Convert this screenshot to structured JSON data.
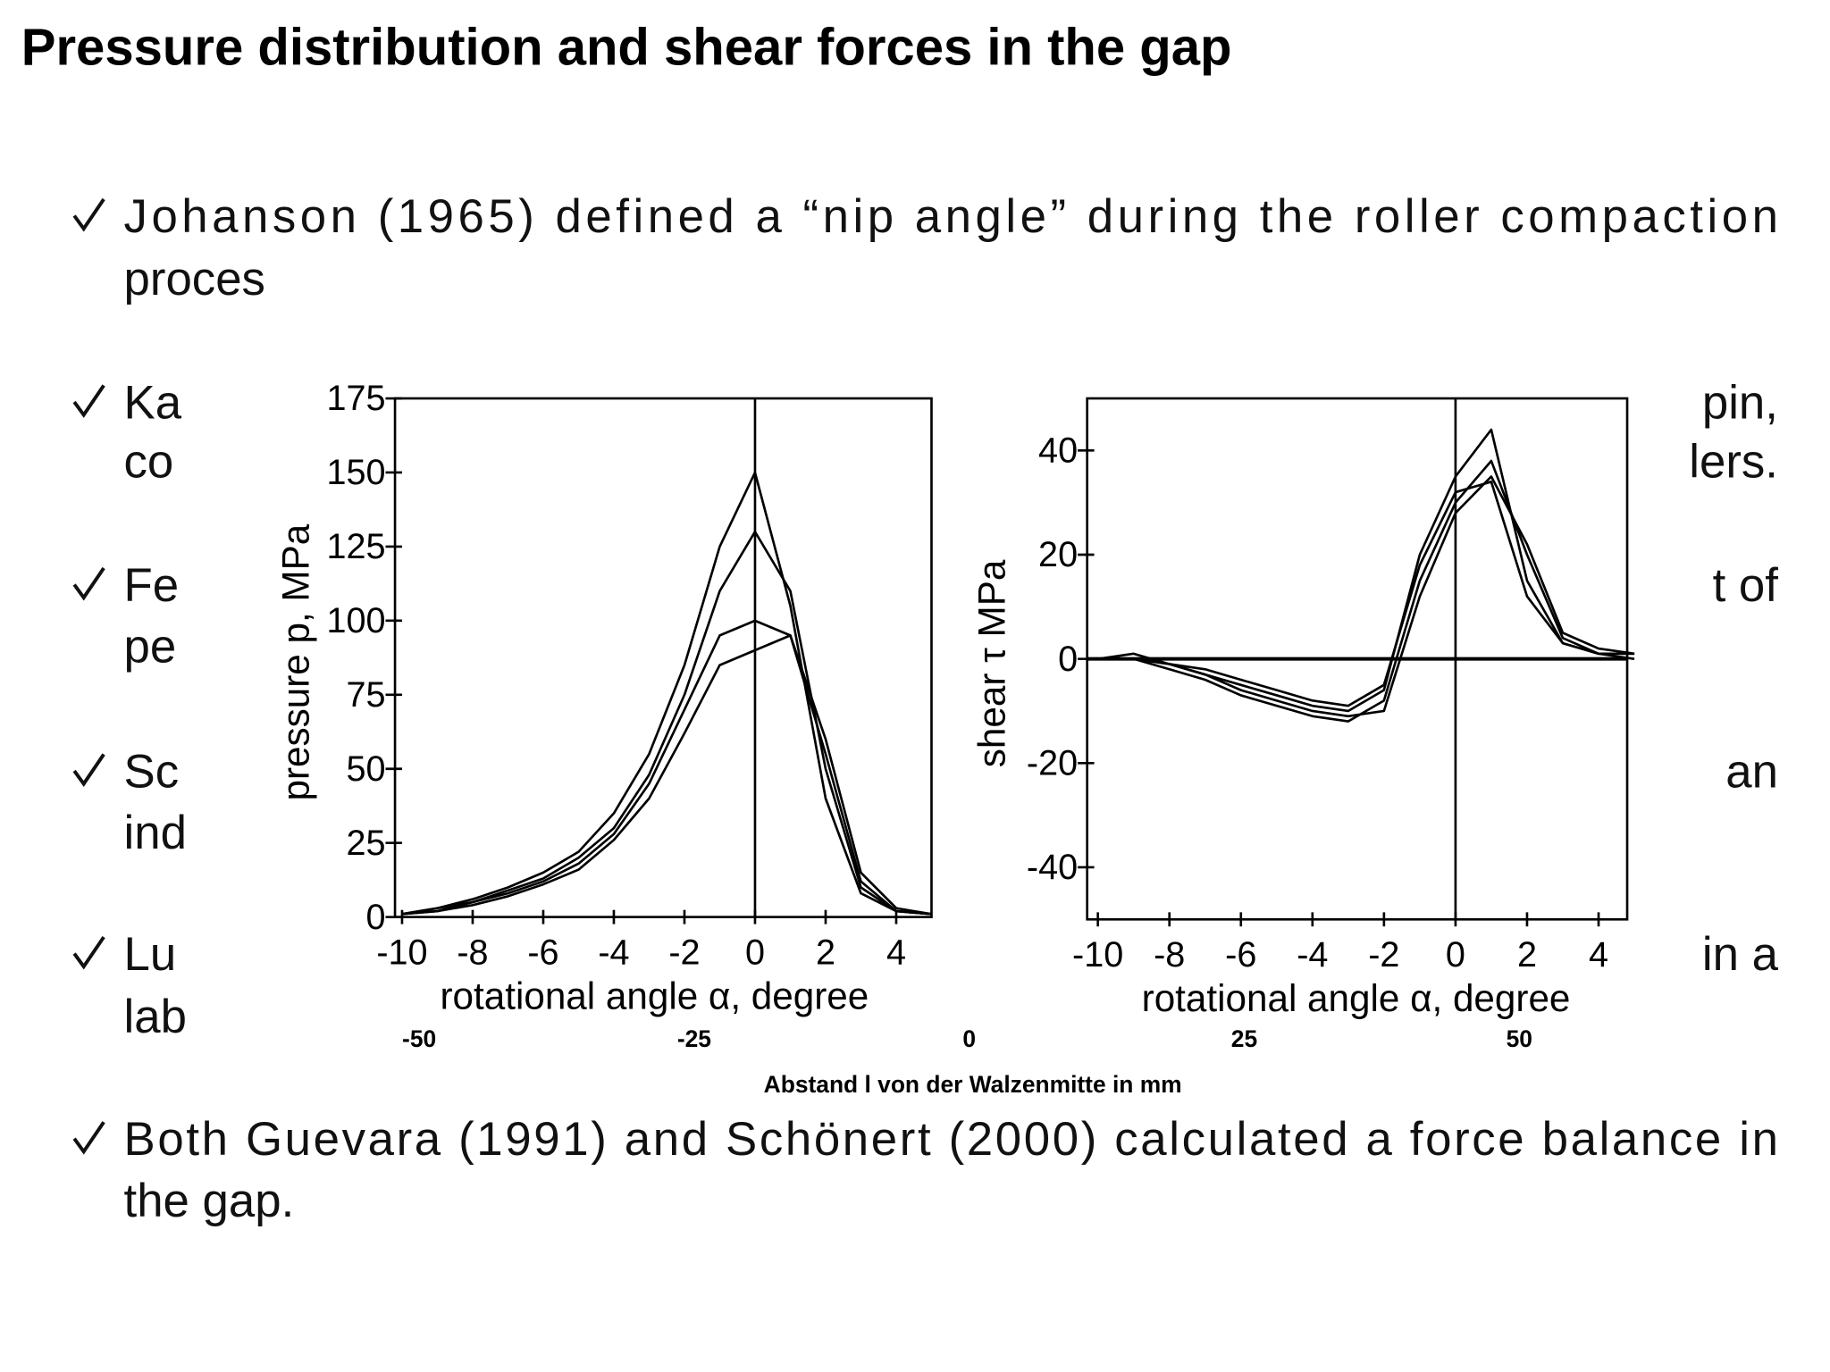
{
  "header": {
    "title": "Pressure distribution and shear forces in the gap"
  },
  "bullets": [
    {
      "lines": [
        "Johanson (1965) defined a “nip angle” during the roller compaction",
        "proces"
      ],
      "right": []
    },
    {
      "lines": [
        "Ka",
        "co"
      ],
      "right": [
        "pin,",
        "lers."
      ]
    },
    {
      "lines": [
        "Fe",
        "pe"
      ],
      "right": [
        "t of"
      ]
    },
    {
      "lines": [
        "Sc",
        "ind"
      ],
      "right": [
        "an"
      ]
    },
    {
      "lines": [
        "Lu",
        "lab"
      ],
      "right": [
        "in a"
      ]
    },
    {
      "lines": [
        "Both Guevara (1991) and Schönert (2000) calculated a force balance in",
        "the gap."
      ],
      "right": []
    }
  ],
  "chart_data": [
    {
      "type": "line",
      "xlabel": "rotational  angle  α,  degree",
      "ylabel": "pressure  p,  MPa",
      "x": [
        -10,
        -9,
        -8,
        -7,
        -6,
        -5,
        -4,
        -3,
        -2,
        -1,
        0,
        1,
        2,
        3,
        4,
        5
      ],
      "series": [
        {
          "color": "#000000",
          "values": [
            1,
            3,
            6,
            10,
            15,
            22,
            35,
            55,
            85,
            125,
            150,
            105,
            40,
            8,
            2,
            1
          ]
        },
        {
          "color": "#000000",
          "values": [
            1,
            3,
            5,
            9,
            13,
            20,
            30,
            48,
            75,
            110,
            130,
            110,
            50,
            10,
            2,
            1
          ]
        },
        {
          "color": "#000000",
          "values": [
            1,
            2,
            5,
            8,
            12,
            18,
            28,
            45,
            70,
            95,
            100,
            95,
            55,
            12,
            2,
            1
          ]
        },
        {
          "color": "#000000",
          "values": [
            1,
            2,
            4,
            7,
            11,
            16,
            26,
            40,
            62,
            85,
            90,
            95,
            60,
            15,
            3,
            1
          ]
        }
      ],
      "xlim": [
        -10.2,
        5
      ],
      "ylim": [
        0,
        175
      ],
      "xticks": [
        -10,
        -8,
        -6,
        -4,
        -2,
        0,
        2,
        4
      ],
      "yticks": [
        0,
        25,
        50,
        75,
        100,
        125,
        150,
        175
      ],
      "vline": 0
    },
    {
      "type": "line",
      "xlabel": "rotational  angle  α,  degree",
      "ylabel": "shear τ  MPa",
      "x": [
        -10,
        -9,
        -8,
        -7,
        -6,
        -5,
        -4,
        -3,
        -2,
        -1,
        0,
        1,
        2,
        3,
        4,
        5
      ],
      "series": [
        {
          "color": "#000000",
          "values": [
            0,
            0,
            -1,
            -3,
            -5,
            -7,
            -9,
            -10,
            -6,
            20,
            35,
            44,
            15,
            3,
            1,
            1
          ]
        },
        {
          "color": "#000000",
          "values": [
            0,
            0,
            -2,
            -4,
            -7,
            -9,
            -11,
            -12,
            -8,
            15,
            30,
            38,
            20,
            4,
            1,
            1
          ]
        },
        {
          "color": "#000000",
          "values": [
            0,
            1,
            -1,
            -3,
            -6,
            -8,
            -10,
            -11,
            -10,
            12,
            28,
            35,
            22,
            5,
            2,
            1
          ]
        },
        {
          "color": "#000000",
          "values": [
            0,
            0,
            -1,
            -2,
            -4,
            -6,
            -8,
            -9,
            -5,
            18,
            32,
            34,
            12,
            3,
            1,
            0
          ]
        }
      ],
      "xlim": [
        -10.3,
        4.8
      ],
      "ylim": [
        -50,
        50
      ],
      "xticks": [
        -10,
        -8,
        -6,
        -4,
        -2,
        0,
        2,
        4
      ],
      "yticks": [
        -40,
        -20,
        0,
        20,
        40
      ],
      "vline": 0,
      "hline": 0
    }
  ],
  "distance_axis": {
    "label": "Abstand l von der Walzenmitte in mm",
    "ticks": [
      -50,
      -25,
      0,
      25,
      50
    ]
  }
}
